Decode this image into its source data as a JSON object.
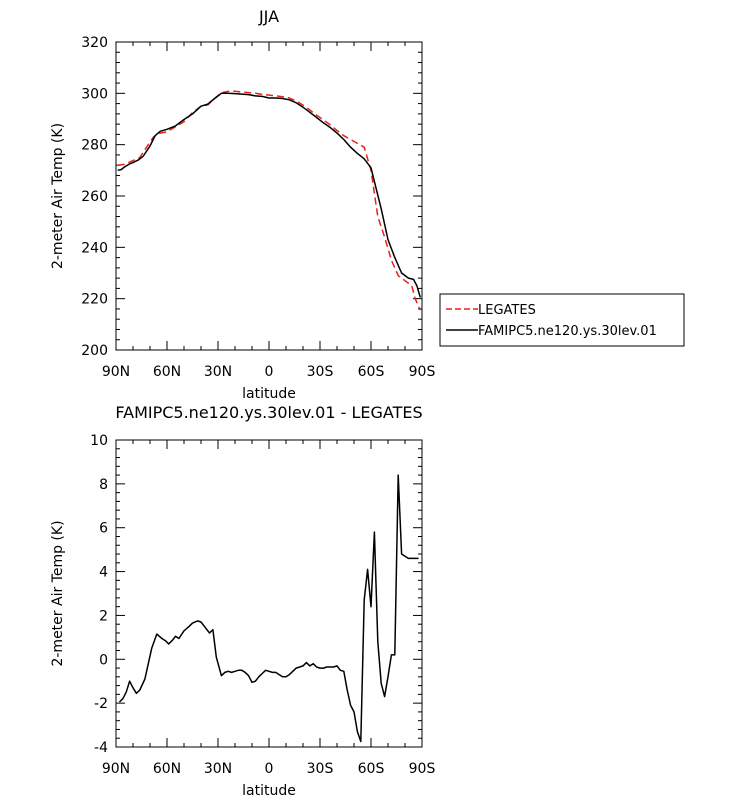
{
  "chart_data": [
    {
      "type": "line",
      "title": "JJA",
      "xlabel": "latitude",
      "ylabel": "2-meter Air Temp (K)",
      "xlim": [
        90,
        -90
      ],
      "ylim": [
        200,
        320
      ],
      "xticks": [
        90,
        60,
        30,
        0,
        -30,
        -60,
        -90
      ],
      "xtick_labels": [
        "90N",
        "60N",
        "30N",
        "0",
        "30S",
        "60S",
        "90S"
      ],
      "yticks": [
        200,
        220,
        240,
        260,
        280,
        300,
        320
      ],
      "ytick_labels": [
        "200",
        "220",
        "240",
        "260",
        "280",
        "300",
        "320"
      ],
      "legend_position": "right",
      "series": [
        {
          "name": "LEGATES",
          "color": "#e8211b",
          "dash": "dashed",
          "x": [
            89,
            85,
            80,
            76,
            72,
            68,
            64,
            60,
            55,
            50,
            45,
            40,
            36,
            32,
            28,
            24,
            20,
            16,
            12,
            8,
            4,
            0,
            -4,
            -8,
            -12,
            -16,
            -20,
            -24,
            -28,
            -32,
            -36,
            -40,
            -44,
            -48,
            -52,
            -56,
            -60,
            -64,
            -68,
            -72,
            -76,
            -80,
            -84,
            -86,
            -88,
            -89
          ],
          "y": [
            272,
            272.3,
            273.8,
            275,
            279,
            283,
            284.5,
            285,
            287,
            289,
            292.5,
            295,
            295.5,
            298,
            300.2,
            300.8,
            300.8,
            300.5,
            300.3,
            300,
            299.6,
            299.3,
            299,
            298.7,
            298.2,
            297,
            295.4,
            293.5,
            291.5,
            289.7,
            287.7,
            285.5,
            283.5,
            282,
            280.5,
            279,
            270,
            252,
            244,
            235,
            229,
            227,
            225,
            220,
            217,
            215.5
          ]
        },
        {
          "name": "FAMIPC5.ne120.ys.30lev.01",
          "color": "#000000",
          "dash": "solid",
          "x": [
            89,
            87,
            85,
            82,
            80,
            77,
            74,
            70,
            67,
            64,
            60,
            55,
            50,
            45,
            40,
            36,
            32,
            28,
            24,
            20,
            16,
            12,
            8,
            4,
            0,
            -4,
            -8,
            -12,
            -16,
            -20,
            -24,
            -28,
            -32,
            -36,
            -40,
            -44,
            -48,
            -52,
            -56,
            -60,
            -63,
            -66,
            -70,
            -74,
            -78,
            -82,
            -85,
            -87,
            -89
          ],
          "y": [
            270,
            270.3,
            271.3,
            272.5,
            273,
            274,
            275.5,
            279.5,
            283.5,
            285.2,
            286,
            287.3,
            289.8,
            292,
            295,
            295.8,
            298,
            300,
            300,
            299.9,
            299.7,
            299.5,
            299,
            298.8,
            298.2,
            298.2,
            298,
            297.5,
            296.3,
            294.6,
            292.6,
            290.6,
            288.5,
            286.7,
            284.5,
            282,
            279,
            276.6,
            274.5,
            271,
            263,
            255,
            243,
            236,
            230,
            228,
            227.5,
            225,
            220.5
          ]
        }
      ]
    },
    {
      "type": "line",
      "title": "FAMIPC5.ne120.ys.30lev.01 - LEGATES",
      "xlabel": "latitude",
      "ylabel": "2-meter Air Temp (K)",
      "xlim": [
        90,
        -90
      ],
      "ylim": [
        -4,
        10
      ],
      "xticks": [
        90,
        60,
        30,
        0,
        -30,
        -60,
        -90
      ],
      "xtick_labels": [
        "90N",
        "60N",
        "30N",
        "0",
        "30S",
        "60S",
        "90S"
      ],
      "yticks": [
        -4,
        -2,
        0,
        2,
        4,
        6,
        8,
        10
      ],
      "ytick_labels": [
        "-4",
        "-2",
        "0",
        "2",
        "4",
        "6",
        "8",
        "10"
      ],
      "series": [
        {
          "color": "#000000",
          "dash": "solid",
          "x": [
            88,
            86,
            84,
            82,
            80,
            78,
            76,
            73,
            71,
            69,
            66,
            63,
            61,
            59,
            57,
            55,
            53,
            50,
            47,
            45,
            42,
            40,
            38,
            35,
            33,
            31,
            28,
            26,
            24,
            22,
            20,
            18,
            16,
            14,
            12,
            10,
            8,
            6,
            4,
            2,
            0,
            -2,
            -4,
            -6,
            -8,
            -10,
            -12,
            -14,
            -16,
            -18,
            -20,
            -22,
            -24,
            -26,
            -28,
            -30,
            -32,
            -34,
            -36,
            -38,
            -40,
            -42,
            -44,
            -46,
            -48,
            -50,
            -52,
            -54,
            -56,
            -58,
            -60,
            -62,
            -64,
            -66,
            -68,
            -70,
            -72,
            -74,
            -76,
            -78,
            -80,
            -82,
            -84,
            -86,
            -88
          ],
          "y": [
            -1.95,
            -1.8,
            -1.5,
            -1.0,
            -1.3,
            -1.55,
            -1.4,
            -0.9,
            -0.2,
            0.5,
            1.15,
            0.95,
            0.85,
            0.7,
            0.85,
            1.05,
            0.95,
            1.3,
            1.5,
            1.65,
            1.75,
            1.7,
            1.5,
            1.2,
            1.35,
            0.1,
            -0.75,
            -0.6,
            -0.55,
            -0.6,
            -0.55,
            -0.5,
            -0.5,
            -0.6,
            -0.75,
            -1.05,
            -1.0,
            -0.8,
            -0.65,
            -0.5,
            -0.55,
            -0.6,
            -0.6,
            -0.7,
            -0.8,
            -0.8,
            -0.7,
            -0.55,
            -0.4,
            -0.35,
            -0.3,
            -0.15,
            -0.3,
            -0.2,
            -0.35,
            -0.4,
            -0.4,
            -0.35,
            -0.35,
            -0.35,
            -0.3,
            -0.5,
            -0.55,
            -1.4,
            -2.1,
            -2.4,
            -3.3,
            -3.75,
            2.7,
            4.1,
            2.4,
            5.8,
            0.8,
            -1.1,
            -1.7,
            -0.8,
            0.2,
            0.2,
            8.4,
            4.8,
            4.7,
            4.6,
            4.6,
            4.6,
            4.6
          ]
        }
      ]
    }
  ]
}
